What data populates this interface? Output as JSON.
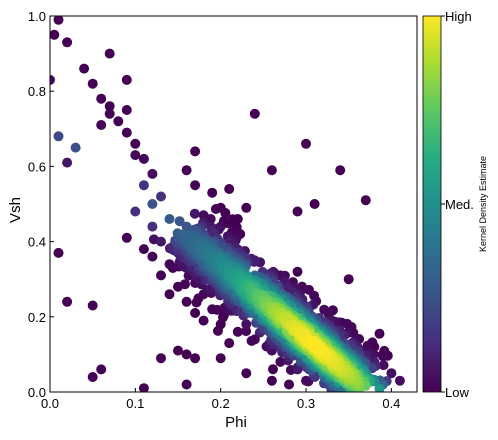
{
  "chart_data": {
    "type": "scatter",
    "title": "",
    "xlabel": "Phi",
    "ylabel": "Vsh",
    "xlim": [
      0.0,
      0.43
    ],
    "ylim": [
      0.0,
      1.0
    ],
    "xticks": [
      "0.0",
      "0.1",
      "0.2",
      "0.3",
      "0.4"
    ],
    "yticks": [
      "0.0",
      "0.2",
      "0.4",
      "0.6",
      "0.8",
      "1.0"
    ],
    "grid": false,
    "colorbar": {
      "label": "Kernel Density Estimate",
      "ticks": [
        "Low",
        "Med.",
        "High"
      ],
      "colormap": [
        "#440154",
        "#472c7a",
        "#3b518b",
        "#2c718e",
        "#21908d",
        "#27ad81",
        "#5cc863",
        "#aadc32",
        "#fde725"
      ]
    },
    "density_trend": {
      "description_points": [
        [
          0.17,
          0.4
        ],
        [
          0.22,
          0.3
        ],
        [
          0.27,
          0.2
        ],
        [
          0.32,
          0.11
        ],
        [
          0.36,
          0.04
        ]
      ]
    },
    "points": [
      [
        0.0,
        0.83
      ],
      [
        0.01,
        0.99
      ],
      [
        0.005,
        0.95
      ],
      [
        0.01,
        0.68
      ],
      [
        0.01,
        0.37
      ],
      [
        0.02,
        0.93
      ],
      [
        0.02,
        0.61
      ],
      [
        0.03,
        0.65
      ],
      [
        0.02,
        0.24
      ],
      [
        0.05,
        0.23
      ],
      [
        0.05,
        0.04
      ],
      [
        0.06,
        0.06
      ],
      [
        0.11,
        0.01
      ],
      [
        0.07,
        0.9
      ],
      [
        0.09,
        0.83
      ],
      [
        0.04,
        0.86
      ],
      [
        0.05,
        0.82
      ],
      [
        0.06,
        0.78
      ],
      [
        0.07,
        0.76
      ],
      [
        0.08,
        0.72
      ],
      [
        0.06,
        0.71
      ],
      [
        0.09,
        0.69
      ],
      [
        0.07,
        0.74
      ],
      [
        0.09,
        0.75
      ],
      [
        0.1,
        0.66
      ],
      [
        0.1,
        0.63
      ],
      [
        0.11,
        0.62
      ],
      [
        0.12,
        0.58
      ],
      [
        0.11,
        0.55
      ],
      [
        0.13,
        0.52
      ],
      [
        0.12,
        0.5
      ],
      [
        0.09,
        0.41
      ],
      [
        0.1,
        0.48
      ],
      [
        0.12,
        0.44
      ],
      [
        0.13,
        0.4
      ],
      [
        0.14,
        0.46
      ],
      [
        0.11,
        0.38
      ],
      [
        0.12,
        0.36
      ],
      [
        0.14,
        0.34
      ],
      [
        0.13,
        0.31
      ],
      [
        0.15,
        0.37
      ],
      [
        0.16,
        0.33
      ],
      [
        0.15,
        0.28
      ],
      [
        0.14,
        0.26
      ],
      [
        0.16,
        0.24
      ],
      [
        0.17,
        0.21
      ],
      [
        0.18,
        0.19
      ],
      [
        0.15,
        0.11
      ],
      [
        0.17,
        0.09
      ],
      [
        0.16,
        0.1
      ],
      [
        0.2,
        0.09
      ],
      [
        0.21,
        0.13
      ],
      [
        0.16,
        0.02
      ],
      [
        0.13,
        0.09
      ],
      [
        0.16,
        0.59
      ],
      [
        0.17,
        0.64
      ],
      [
        0.21,
        0.54
      ],
      [
        0.24,
        0.74
      ],
      [
        0.26,
        0.59
      ],
      [
        0.3,
        0.66
      ],
      [
        0.31,
        0.5
      ],
      [
        0.29,
        0.48
      ],
      [
        0.34,
        0.59
      ],
      [
        0.37,
        0.51
      ],
      [
        0.35,
        0.3
      ],
      [
        0.38,
        0.12
      ],
      [
        0.41,
        0.03
      ],
      [
        0.23,
        0.05
      ],
      [
        0.26,
        0.03
      ],
      [
        0.27,
        0.31
      ],
      [
        0.29,
        0.32
      ],
      [
        0.23,
        0.49
      ],
      [
        0.17,
        0.55
      ],
      [
        0.19,
        0.53
      ],
      [
        0.2,
        0.49
      ],
      [
        0.22,
        0.46
      ],
      [
        0.18,
        0.47
      ],
      [
        0.16,
        0.44
      ],
      [
        0.18,
        0.42
      ],
      [
        0.2,
        0.44
      ],
      [
        0.21,
        0.4
      ],
      [
        0.19,
        0.39
      ],
      [
        0.17,
        0.37
      ],
      [
        0.22,
        0.37
      ],
      [
        0.23,
        0.34
      ],
      [
        0.2,
        0.35
      ],
      [
        0.18,
        0.33
      ],
      [
        0.24,
        0.31
      ],
      [
        0.21,
        0.31
      ],
      [
        0.19,
        0.3
      ],
      [
        0.22,
        0.28
      ],
      [
        0.25,
        0.28
      ],
      [
        0.23,
        0.26
      ],
      [
        0.2,
        0.27
      ],
      [
        0.26,
        0.25
      ],
      [
        0.24,
        0.23
      ],
      [
        0.22,
        0.22
      ],
      [
        0.27,
        0.22
      ],
      [
        0.25,
        0.2
      ],
      [
        0.28,
        0.19
      ],
      [
        0.26,
        0.18
      ],
      [
        0.23,
        0.18
      ],
      [
        0.29,
        0.16
      ],
      [
        0.27,
        0.15
      ],
      [
        0.3,
        0.14
      ],
      [
        0.28,
        0.12
      ],
      [
        0.31,
        0.12
      ],
      [
        0.32,
        0.1
      ],
      [
        0.3,
        0.09
      ],
      [
        0.33,
        0.08
      ],
      [
        0.31,
        0.07
      ],
      [
        0.34,
        0.06
      ],
      [
        0.32,
        0.05
      ],
      [
        0.35,
        0.04
      ],
      [
        0.36,
        0.03
      ],
      [
        0.33,
        0.02
      ],
      [
        0.37,
        0.05
      ],
      [
        0.38,
        0.08
      ],
      [
        0.34,
        0.1
      ],
      [
        0.36,
        0.12
      ],
      [
        0.33,
        0.14
      ],
      [
        0.35,
        0.16
      ],
      [
        0.31,
        0.18
      ],
      [
        0.3,
        0.21
      ],
      [
        0.28,
        0.23
      ],
      [
        0.33,
        0.19
      ],
      [
        0.29,
        0.26
      ],
      [
        0.26,
        0.29
      ],
      [
        0.24,
        0.35
      ],
      [
        0.21,
        0.25
      ],
      [
        0.19,
        0.22
      ],
      [
        0.18,
        0.26
      ],
      [
        0.17,
        0.29
      ],
      [
        0.2,
        0.18
      ],
      [
        0.22,
        0.16
      ],
      [
        0.24,
        0.14
      ],
      [
        0.26,
        0.11
      ],
      [
        0.27,
        0.08
      ],
      [
        0.29,
        0.06
      ],
      [
        0.3,
        0.03
      ],
      [
        0.28,
        0.02
      ],
      [
        0.39,
        0.02
      ],
      [
        0.39,
        0.1
      ],
      [
        0.4,
        0.05
      ]
    ]
  }
}
